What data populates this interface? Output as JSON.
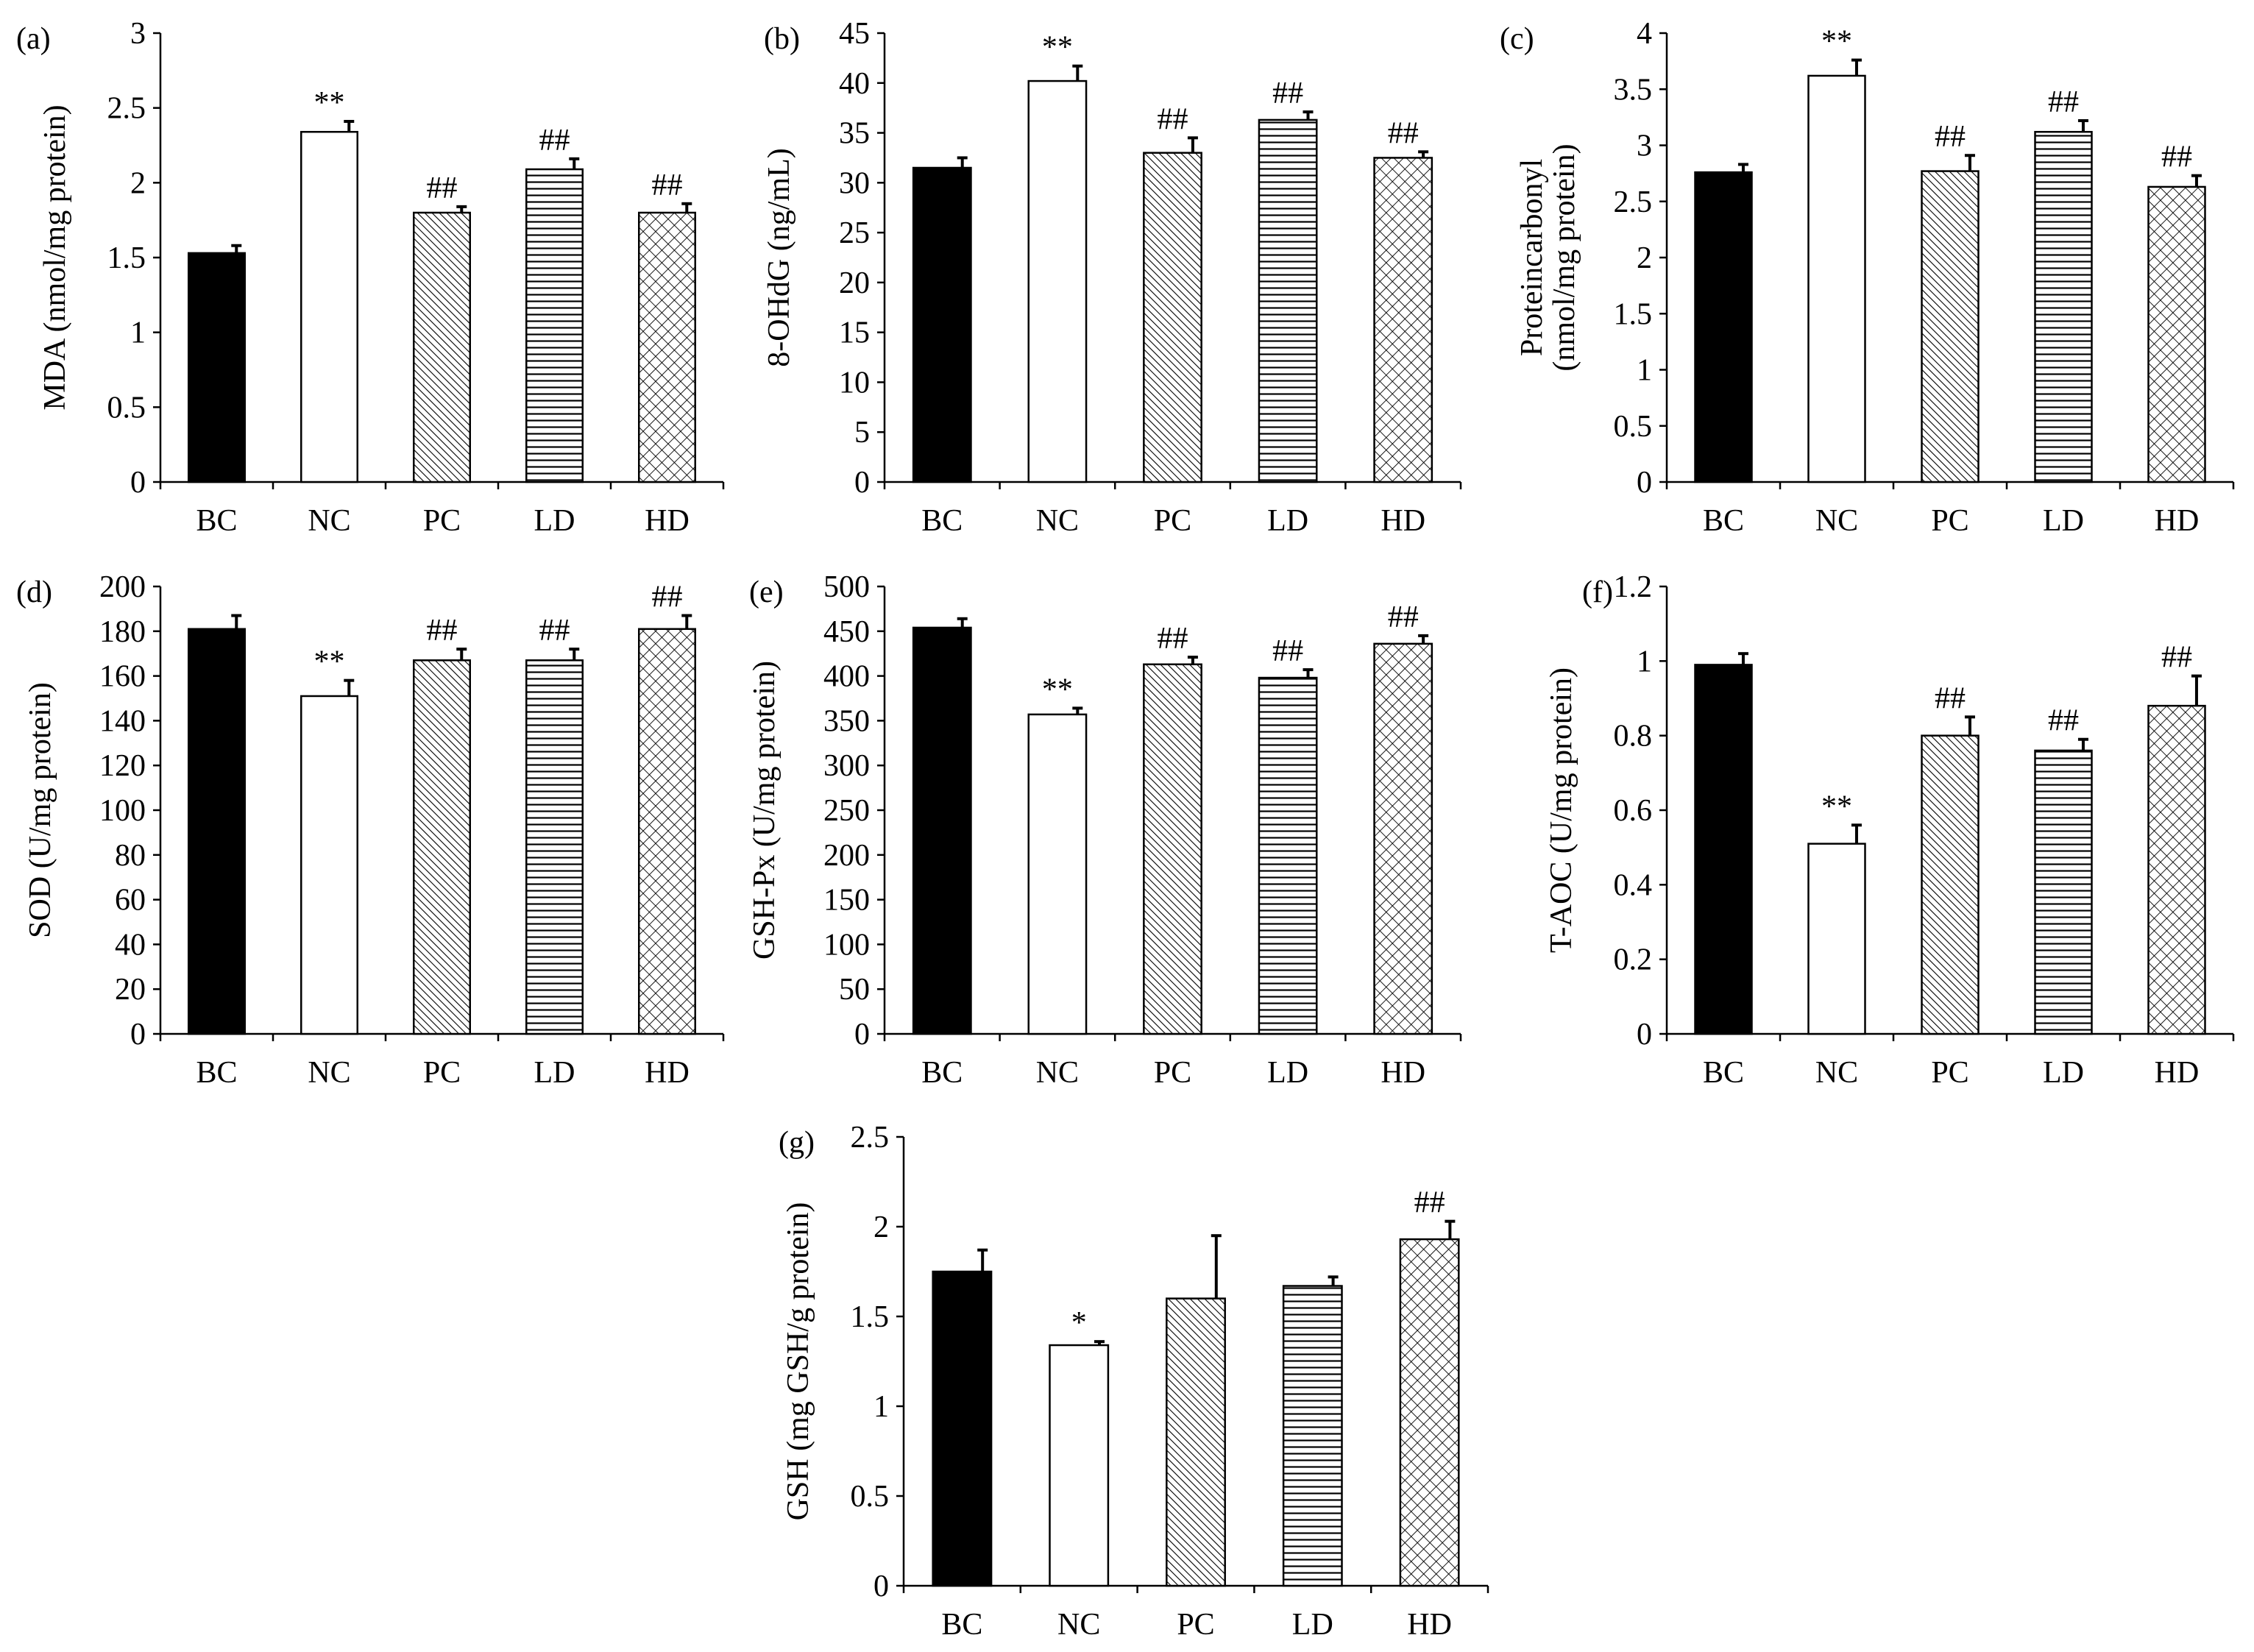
{
  "figure": {
    "categories": [
      "BC",
      "NC",
      "PC",
      "LD",
      "HD"
    ],
    "colors": {
      "axis": "#000000",
      "bar_stroke": "#000000",
      "solid": "#000000",
      "open": "#ffffff",
      "error_bar": "#000000"
    },
    "patterns": [
      "solid",
      "open",
      "diagonal",
      "horizontal",
      "crosshatch"
    ]
  },
  "chart_data": [
    {
      "type": "bar",
      "panel": "(a)",
      "ylabel": "MDA (nmol/mg protein)",
      "ylim": [
        0,
        3
      ],
      "ticks": [
        0,
        0.5,
        1,
        1.5,
        2,
        2.5,
        3
      ],
      "tick_labels": [
        "0",
        "0.5",
        "1",
        "1.5",
        "2",
        "2.5",
        "3"
      ],
      "categories": [
        "BC",
        "NC",
        "PC",
        "LD",
        "HD"
      ],
      "values": [
        1.53,
        2.34,
        1.8,
        2.09,
        1.8
      ],
      "errors": [
        0.05,
        0.07,
        0.04,
        0.07,
        0.06
      ],
      "annotations": [
        "",
        "**",
        "##",
        "##",
        "##"
      ]
    },
    {
      "type": "bar",
      "panel": "(b)",
      "ylabel": "8-OHdG (ng/mL)",
      "ylim": [
        0,
        45
      ],
      "ticks": [
        0,
        5,
        10,
        15,
        20,
        25,
        30,
        35,
        40,
        45
      ],
      "tick_labels": [
        "0",
        "5",
        "10",
        "15",
        "20",
        "25",
        "30",
        "35",
        "40",
        "45"
      ],
      "categories": [
        "BC",
        "NC",
        "PC",
        "LD",
        "HD"
      ],
      "values": [
        31.5,
        40.2,
        33.0,
        36.3,
        32.5
      ],
      "errors": [
        1.0,
        1.5,
        1.5,
        0.8,
        0.6
      ],
      "annotations": [
        "",
        "**",
        "##",
        "##",
        "##"
      ]
    },
    {
      "type": "bar",
      "panel": "(c)",
      "ylabel": [
        "Proteincarbonyl",
        "(nmol/mg protein)"
      ],
      "ylim": [
        0,
        4
      ],
      "ticks": [
        0,
        0.5,
        1,
        1.5,
        2,
        2.5,
        3,
        3.5,
        4
      ],
      "tick_labels": [
        "0",
        "0.5",
        "1",
        "1.5",
        "2",
        "2.5",
        "3",
        "3.5",
        "4"
      ],
      "categories": [
        "BC",
        "NC",
        "PC",
        "LD",
        "HD"
      ],
      "values": [
        2.76,
        3.62,
        2.77,
        3.12,
        2.63
      ],
      "errors": [
        0.07,
        0.14,
        0.14,
        0.1,
        0.1
      ],
      "annotations": [
        "",
        "**",
        "##",
        "##",
        "##"
      ]
    },
    {
      "type": "bar",
      "panel": "(d)",
      "ylabel": "SOD (U/mg protein)",
      "ylim": [
        0,
        200
      ],
      "ticks": [
        0,
        20,
        40,
        60,
        80,
        100,
        120,
        140,
        160,
        180,
        200
      ],
      "tick_labels": [
        "0",
        "20",
        "40",
        "60",
        "80",
        "100",
        "120",
        "140",
        "160",
        "180",
        "200"
      ],
      "categories": [
        "BC",
        "NC",
        "PC",
        "LD",
        "HD"
      ],
      "values": [
        181,
        151,
        167,
        167,
        181
      ],
      "errors": [
        6,
        7,
        5,
        5,
        6
      ],
      "annotations": [
        "",
        "**",
        "##",
        "##",
        "##"
      ]
    },
    {
      "type": "bar",
      "panel": "(e)",
      "ylabel": "GSH-Px (U/mg protein)",
      "ylim": [
        0,
        500
      ],
      "ticks": [
        0,
        50,
        100,
        150,
        200,
        250,
        300,
        350,
        400,
        450,
        500
      ],
      "tick_labels": [
        "0",
        "50",
        "100",
        "150",
        "200",
        "250",
        "300",
        "350",
        "400",
        "450",
        "500"
      ],
      "categories": [
        "BC",
        "NC",
        "PC",
        "LD",
        "HD"
      ],
      "values": [
        454,
        357,
        413,
        398,
        436
      ],
      "errors": [
        10,
        7,
        8,
        9,
        9
      ],
      "annotations": [
        "",
        "**",
        "##",
        "##",
        "##"
      ]
    },
    {
      "type": "bar",
      "panel": "(f)",
      "ylabel": "T-AOC (U/mg protein)",
      "ylim": [
        0,
        1.2
      ],
      "ticks": [
        0,
        0.2,
        0.4,
        0.6,
        0.8,
        1,
        1.2
      ],
      "tick_labels": [
        "0",
        "0.2",
        "0.4",
        "0.6",
        "0.8",
        "1",
        "1.2"
      ],
      "categories": [
        "BC",
        "NC",
        "PC",
        "LD",
        "HD"
      ],
      "values": [
        0.99,
        0.51,
        0.8,
        0.76,
        0.88
      ],
      "errors": [
        0.03,
        0.05,
        0.05,
        0.03,
        0.08
      ],
      "annotations": [
        "",
        "**",
        "##",
        "##",
        "##"
      ]
    },
    {
      "type": "bar",
      "panel": "(g)",
      "ylabel": "GSH (mg GSH/g protein)",
      "ylim": [
        0,
        2.5
      ],
      "ticks": [
        0,
        0.5,
        1,
        1.5,
        2,
        2.5
      ],
      "tick_labels": [
        "0",
        "0.5",
        "1",
        "1.5",
        "2",
        "2.5"
      ],
      "categories": [
        "BC",
        "NC",
        "PC",
        "LD",
        "HD"
      ],
      "values": [
        1.75,
        1.34,
        1.6,
        1.67,
        1.93
      ],
      "errors": [
        0.12,
        0.02,
        0.35,
        0.05,
        0.1
      ],
      "annotations": [
        "",
        "*",
        "",
        "",
        "##"
      ]
    }
  ]
}
